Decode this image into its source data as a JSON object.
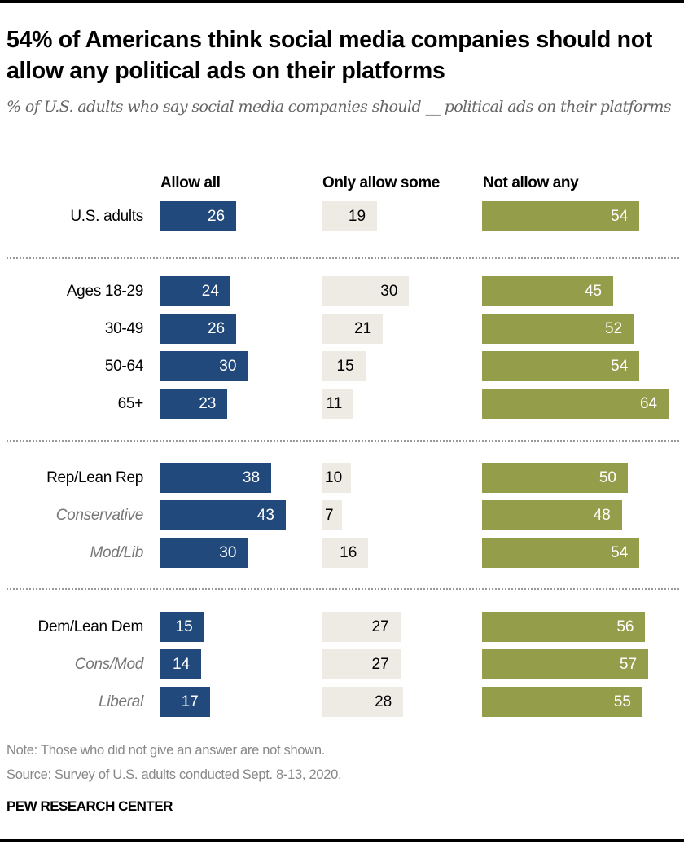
{
  "chart_data": {
    "type": "bar",
    "orientation": "horizontal",
    "title": "54% of Americans think social media companies should not allow any political ads on their platforms",
    "subtitle": "% of U.S. adults who say social media companies should __ political ads on their platforms",
    "series": [
      {
        "name": "Allow all",
        "color": "#22497b",
        "values": [
          26,
          24,
          26,
          30,
          23,
          38,
          43,
          30,
          15,
          14,
          17
        ]
      },
      {
        "name": "Only allow some",
        "color": "#eeebe4",
        "values": [
          19,
          30,
          21,
          15,
          11,
          10,
          7,
          16,
          27,
          27,
          28
        ]
      },
      {
        "name": "Not allow any",
        "color": "#939d4a",
        "values": [
          54,
          45,
          52,
          54,
          64,
          50,
          48,
          54,
          56,
          57,
          55
        ]
      }
    ],
    "categories": [
      "U.S. adults",
      "Ages 18-29",
      "30-49",
      "50-64",
      "65+",
      "Rep/Lean Rep",
      "Conservative",
      "Mod/Lib",
      "Dem/Lean Dem",
      "Cons/Mod",
      "Liberal"
    ],
    "category_style": [
      "main",
      "main",
      "main",
      "main",
      "main",
      "main",
      "sub",
      "sub",
      "main",
      "sub",
      "sub"
    ],
    "groups": [
      [
        0
      ],
      [
        1,
        2,
        3,
        4
      ],
      [
        5,
        6,
        7
      ],
      [
        8,
        9,
        10
      ]
    ],
    "xlabel": "",
    "ylabel": "",
    "grid": false,
    "legend": "top (column headers)"
  },
  "footer": {
    "note": "Note: Those who did not give an answer are not shown.",
    "source": "Source: Survey of U.S. adults conducted Sept. 8-13, 2020.",
    "brand": "PEW RESEARCH CENTER"
  }
}
